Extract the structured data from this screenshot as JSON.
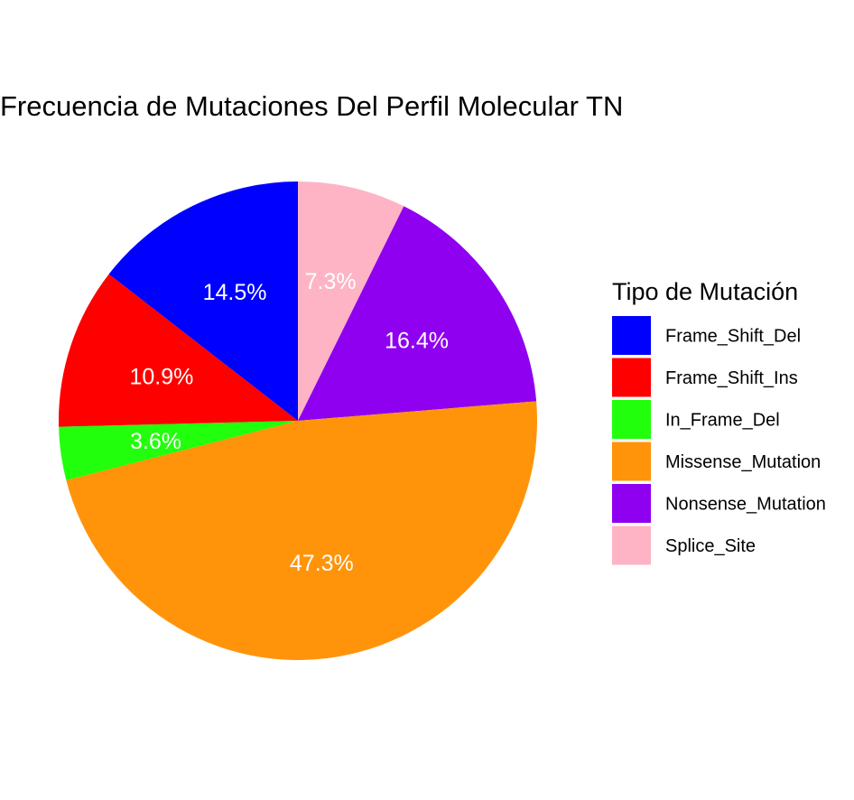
{
  "chart_data": {
    "type": "pie",
    "title": "Frecuencia de Mutaciones Del Perfil Molecular TN",
    "legend_title": "Tipo de Mutación",
    "legend_position": "right",
    "slices": [
      {
        "category": "Frame_Shift_Del",
        "value": 14.5,
        "label": "14.5%",
        "color": "#0000FF"
      },
      {
        "category": "Frame_Shift_Ins",
        "value": 10.9,
        "label": "10.9%",
        "color": "#FF0000"
      },
      {
        "category": "In_Frame_Del",
        "value": 3.6,
        "label": "3.6%",
        "color": "#22FF0C"
      },
      {
        "category": "Missense_Mutation",
        "value": 47.3,
        "label": "47.3%",
        "color": "#FF940B"
      },
      {
        "category": "Nonsense_Mutation",
        "value": 16.4,
        "label": "16.4%",
        "color": "#8F00F0"
      },
      {
        "category": "Splice_Site",
        "value": 7.3,
        "label": "7.3%",
        "color": "#FEB4C4"
      }
    ]
  }
}
